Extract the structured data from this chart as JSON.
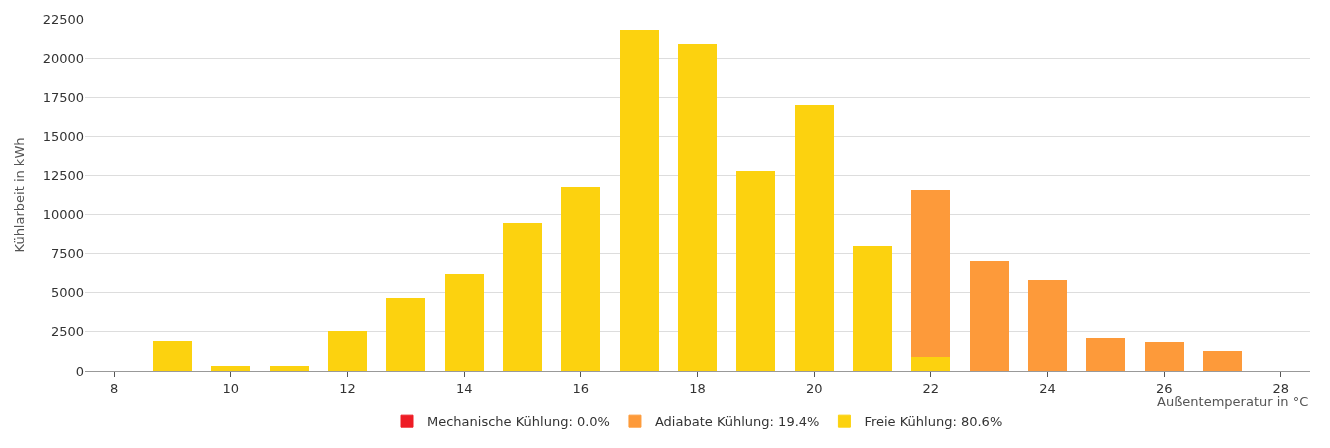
{
  "chart_data": {
    "type": "bar",
    "stacked": true,
    "xlabel": "Außentemperatur in °C",
    "ylabel": "Kühlarbeit in kWh",
    "categories": [
      "8",
      null,
      "10",
      null,
      "12",
      null,
      "14",
      null,
      "16",
      null,
      "18",
      null,
      "20",
      null,
      "22",
      null,
      "24",
      null,
      "26",
      null,
      "28"
    ],
    "series": [
      {
        "name": "Freie Kühlung: 80.6%",
        "color": "#fcd20f",
        "values": [
          null,
          1900,
          300,
          300,
          2500,
          4650,
          6150,
          9450,
          11700,
          21750,
          20850,
          12750,
          17000,
          7950,
          900,
          null,
          null,
          null,
          null,
          null,
          null
        ]
      },
      {
        "name": "Adiabate Kühlung: 19.4%",
        "color": "#fd9a3a",
        "values": [
          null,
          null,
          null,
          null,
          null,
          null,
          null,
          null,
          null,
          null,
          null,
          null,
          null,
          null,
          10650,
          7000,
          5800,
          2100,
          1850,
          1250,
          null
        ]
      },
      {
        "name": "Mechanische Kühlung: 0.0%",
        "color": "#ee1c25",
        "values": [
          null,
          null,
          null,
          null,
          null,
          null,
          null,
          null,
          null,
          null,
          null,
          null,
          null,
          null,
          null,
          null,
          null,
          null,
          null,
          null,
          null
        ]
      }
    ],
    "ylim": [
      0,
      22500
    ],
    "yticks": [
      0,
      2500,
      5000,
      7500,
      10000,
      12500,
      15000,
      17500,
      20000,
      22500
    ],
    "grid": "y",
    "legend": "bottom"
  }
}
